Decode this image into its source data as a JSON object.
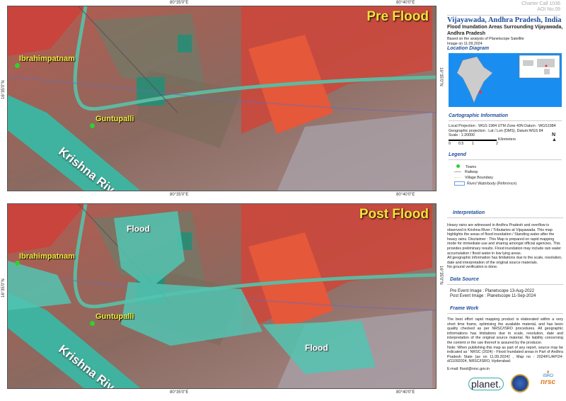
{
  "panels": [
    {
      "title": "Pre Flood",
      "towns": [
        "Ibrahimpatnam",
        "Guntupalli"
      ],
      "river": "Krishna River"
    },
    {
      "title": "Post Flood",
      "towns": [
        "Ibrahimpatnam",
        "Guntupalli"
      ],
      "river": "Krishna River",
      "flood_labels": [
        "Flood",
        "Flood"
      ]
    }
  ],
  "coords": {
    "lon1": "80°35'0\"E",
    "lon2": "80°40'0\"E",
    "lat": "16°35'0\"N"
  },
  "sidebar": {
    "charter": "Charter Call 1036",
    "aoi": "AOI No.09",
    "title": "Vijayawada, Andhra Pradesh, India",
    "subtitle": "Flood Inundation Areas Surrounding Vijayawada, Andhra Pradesh",
    "based_on": "Based on the analysis of Planetscope Satellite Image on 11.09.2024",
    "location_heading": "Location Diagram",
    "carto_heading": "Cartographic Information",
    "carto_lines": [
      "Local Projection : WGS 1984 UTM Zone 43N Datum : WGS1984",
      "Geographic projection : Lat / Lon (DMS), Datum:WGS 84",
      "Scale : 1:20000"
    ],
    "scale_ticks": [
      "0",
      "0.5",
      "1",
      "2"
    ],
    "scale_unit": "Kilometers",
    "north": "N",
    "legend_heading": "Legend",
    "legend": [
      {
        "label": "Towns",
        "color": "#2fd12f"
      },
      {
        "label": "Railway"
      },
      {
        "label": "Village Boundary"
      },
      {
        "label": "River/ Waterbody (Reference)"
      }
    ],
    "interp_heading": "Interpretation",
    "interp": "Heavy rains are witnessed in Andhra Pradesh and overflow is observed in Krishna River / Tributaries at Vijayawada. This map highlights the areas of flood inundation / Standing water after the heavy rains. Disclaimer : This Map is prepared on rapid mapping mode for immediate use and sharing amongst official agencies. This provides preliminary results. Flood inundation may include rain water accumulation / flood water in low lying areas.",
    "interp2": "All geographic information has limitations due to the scale, resolution, date and interpretation of the original source materials.",
    "interp3": "No ground verification is done.",
    "ds_heading": "Data Source",
    "ds": [
      "Pre Event Image :  Planetscope 13-Aug-2022",
      "Post Event Image :  Planetscope 11-Sep-2024"
    ],
    "fw_heading": "Frame Work",
    "fw": "The best effort rapid mapping product is elaborated within a very short time frame, optimising the available material, and has been quality checked as per NRSC/ISRO procedures. All geographic informations has limitations due to scale, resolution, date and interpretation of the original source material. No liability concerning the content or the use thereof is assured by the producer.",
    "note": "Note: When publishing this map as part of any report, source may be indicated as ' NRSC (2024) - Flood Inundated areas in Part of Andhra Pradesh State (as on 11.09.2024)' , Map no : 2024/FL/AP/24-d/11092024, NRSC/ISRO, Hyderabad.",
    "email": "E-mail: flood@nrsc.gov.in",
    "logos": [
      "planet.",
      "ISRO",
      "nrsc"
    ]
  },
  "colors": {
    "accent": "#1f4e9a",
    "town": "#2fd12f",
    "title": "#f5e23a"
  }
}
